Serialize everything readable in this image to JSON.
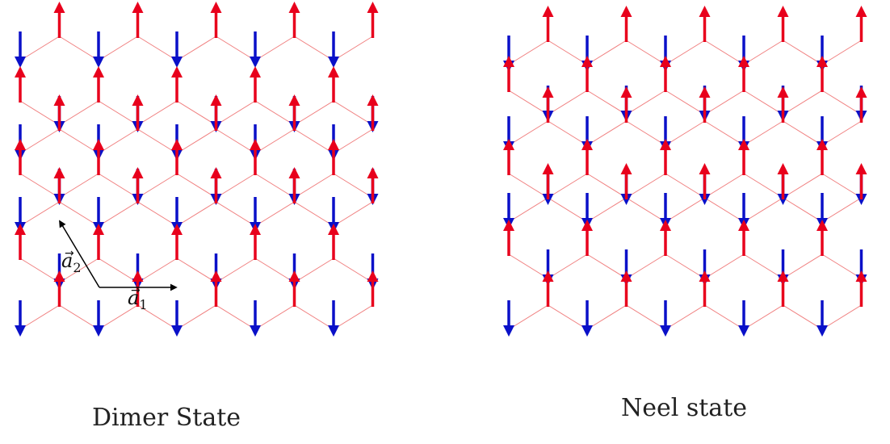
{
  "panels": [
    {
      "id": "dimer",
      "caption": "Dimer State"
    },
    {
      "id": "neel",
      "caption": "Neel state"
    }
  ],
  "lattice_vectors": {
    "a1": {
      "letter": "a",
      "sub": "1"
    },
    "a2": {
      "letter": "a",
      "sub": "2"
    }
  },
  "colors": {
    "spin_up": "#e8001c",
    "spin_down": "#0a10c8",
    "bond": "#f08080",
    "vector": "#000000"
  },
  "legend": null
}
